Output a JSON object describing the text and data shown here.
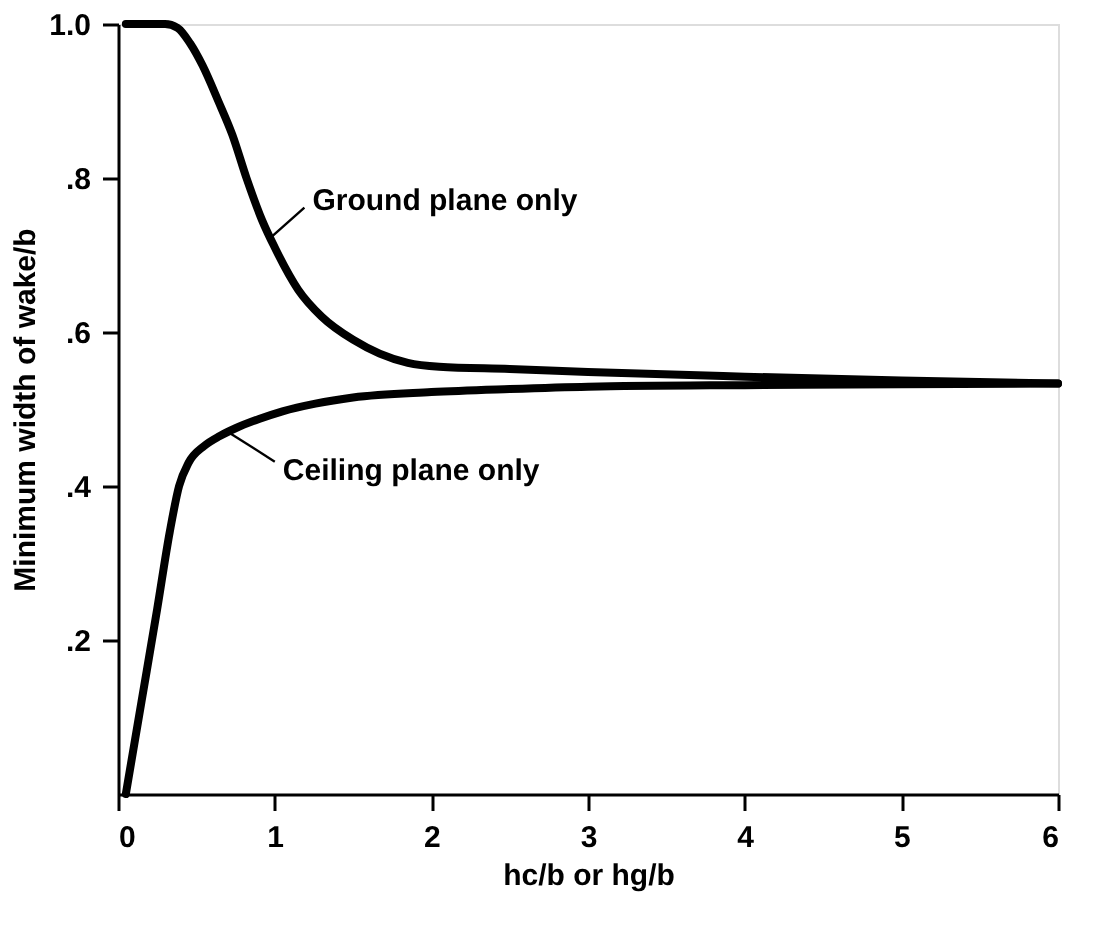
{
  "chart_data": {
    "type": "line",
    "xlabel": "hc/b or hg/b",
    "ylabel": "Minimum width of wake/b",
    "xlim": [
      0,
      6
    ],
    "ylim": [
      0,
      1.0
    ],
    "xticks": [
      0,
      1,
      2,
      3,
      4,
      5,
      6
    ],
    "yticks": [
      {
        "value": 0.2,
        "label": ".2"
      },
      {
        "value": 0.4,
        "label": ".4"
      },
      {
        "value": 0.6,
        "label": ".6"
      },
      {
        "value": 0.8,
        "label": ".8"
      },
      {
        "value": 1.0,
        "label": "1.0"
      }
    ],
    "line_style": "solid",
    "marker": "none",
    "series": [
      {
        "color": "#000000",
        "x": [
          0.05,
          0.15,
          0.3,
          0.38,
          0.46,
          0.54,
          0.64,
          0.73,
          0.82,
          0.92,
          1.0,
          1.15,
          1.3,
          1.5,
          1.67,
          1.85,
          2.05,
          2.5,
          3,
          4,
          5,
          6
        ],
        "values": [
          1.0,
          1.0,
          1.0,
          0.995,
          0.975,
          0.946,
          0.9,
          0.856,
          0.8,
          0.745,
          0.71,
          0.655,
          0.62,
          0.59,
          0.572,
          0.56,
          0.555,
          0.552,
          0.548,
          0.542,
          0.537,
          0.533
        ]
      },
      {
        "color": "#000000",
        "x": [
          0.05,
          0.15,
          0.25,
          0.33,
          0.39,
          0.45,
          0.55,
          0.65,
          0.75,
          0.9,
          1.05,
          1.26,
          1.5,
          2.0,
          2.5,
          3,
          4,
          5,
          6
        ],
        "values": [
          0.0,
          0.12,
          0.24,
          0.34,
          0.4,
          0.43,
          0.452,
          0.465,
          0.475,
          0.487,
          0.497,
          0.507,
          0.515,
          0.522,
          0.526,
          0.529,
          0.531,
          0.532,
          0.533
        ]
      }
    ],
    "annotations": [
      {
        "text": "Ground plane only",
        "x": 0.96,
        "y": 0.72
      },
      {
        "text": "Ceiling plane only",
        "x": 0.72,
        "y": 0.468
      }
    ]
  }
}
